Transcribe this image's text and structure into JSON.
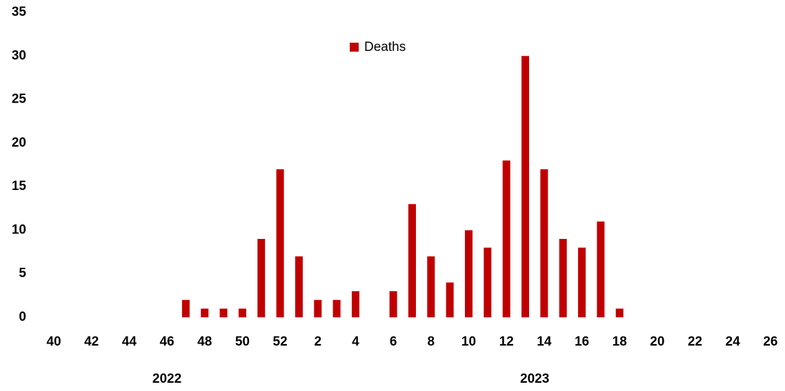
{
  "chart_data": {
    "type": "bar",
    "series_name": "Deaths",
    "color": "#c00000",
    "groups": [
      {
        "label": "2022",
        "categories": [
          "40",
          null,
          "42",
          null,
          "44",
          null,
          "46",
          null,
          "48",
          null,
          "50",
          null,
          "52"
        ],
        "values": [
          0,
          0,
          0,
          0,
          0,
          0,
          0,
          2,
          1,
          1,
          1,
          9,
          17
        ]
      },
      {
        "label": "2023",
        "categories": [
          null,
          "2",
          null,
          "4",
          null,
          "6",
          null,
          "8",
          null,
          "10",
          null,
          "12",
          null,
          "14",
          null,
          "16",
          null,
          "18",
          null,
          "20",
          null,
          "22",
          null,
          "24",
          null,
          "26"
        ],
        "values": [
          7,
          2,
          2,
          3,
          0,
          3,
          13,
          7,
          4,
          10,
          8,
          18,
          30,
          17,
          9,
          8,
          11,
          1,
          0,
          0,
          0,
          0,
          0,
          0,
          0,
          0
        ]
      }
    ],
    "ylim": [
      0,
      35
    ],
    "yticks": [
      0,
      5,
      10,
      15,
      20,
      25,
      30,
      35
    ],
    "grid": false,
    "legend": "top"
  }
}
